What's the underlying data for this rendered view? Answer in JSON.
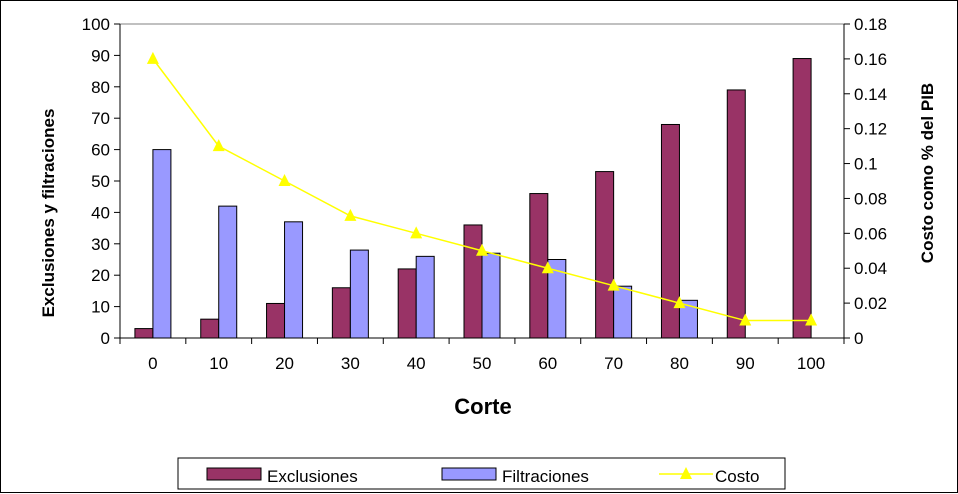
{
  "chart_data": {
    "type": "bar",
    "categories": [
      "0",
      "10",
      "20",
      "30",
      "40",
      "50",
      "60",
      "70",
      "80",
      "90",
      "100"
    ],
    "series": [
      {
        "name": "Exclusiones",
        "type": "bar",
        "axis": "left",
        "color": "#993366",
        "values": [
          3,
          6,
          11,
          16,
          22,
          36,
          46,
          53,
          68,
          79,
          89
        ]
      },
      {
        "name": "Filtraciones",
        "type": "bar",
        "axis": "left",
        "color": "#9999FF",
        "values": [
          60,
          42,
          37,
          28,
          26,
          27,
          25,
          16.5,
          12,
          0,
          0
        ]
      },
      {
        "name": "Costo",
        "type": "line",
        "axis": "right",
        "color": "#FFFF00",
        "values": [
          0.16,
          0.11,
          0.09,
          0.07,
          0.06,
          0.05,
          0.04,
          0.03,
          0.02,
          0.01,
          0.01
        ]
      }
    ],
    "xlabel": "Corte",
    "ylabel": "Exclusiones y filtraciones",
    "y2label": "Costo como % del PIB",
    "ylim": [
      0,
      100
    ],
    "y2lim": [
      0,
      0.18
    ],
    "yticks": [
      "0",
      "10",
      "20",
      "30",
      "40",
      "50",
      "60",
      "70",
      "80",
      "90",
      "100"
    ],
    "y2ticks": [
      "0",
      "0.02",
      "0.04",
      "0.06",
      "0.08",
      "0.1",
      "0.12",
      "0.14",
      "0.16",
      "0.18"
    ],
    "grid": false,
    "legend_position": "bottom"
  }
}
